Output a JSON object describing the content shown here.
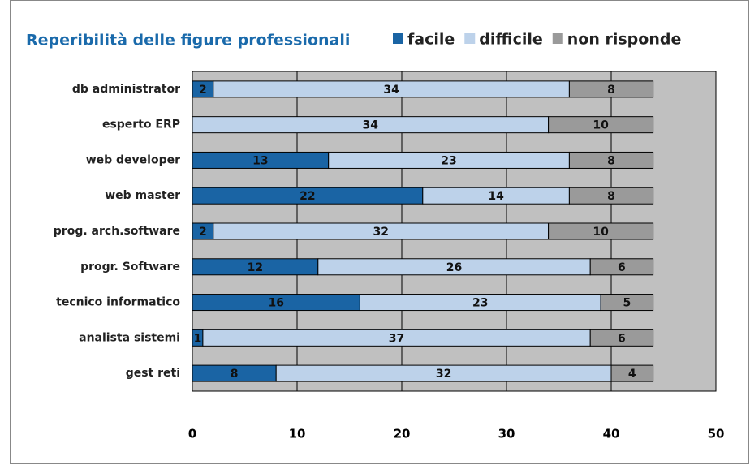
{
  "chart_data": {
    "type": "stacked-barh",
    "title": "Reperibilità delle figure professionali",
    "categories": [
      "db administrator",
      "esperto ERP",
      "web developer",
      "web master",
      "prog. arch.software",
      "progr. Software",
      "tecnico informatico",
      "analista sistemi",
      "gest reti"
    ],
    "series": [
      {
        "name": "facile",
        "color": "#1a64a4",
        "values": [
          2,
          null,
          13,
          22,
          2,
          12,
          16,
          1,
          8
        ]
      },
      {
        "name": "difficile",
        "color": "#bdd2ea",
        "values": [
          34,
          34,
          23,
          14,
          32,
          26,
          23,
          37,
          32
        ]
      },
      {
        "name": "non risponde",
        "color": "#9a9a9a",
        "values": [
          8,
          10,
          8,
          8,
          10,
          6,
          5,
          6,
          4
        ]
      }
    ],
    "xlim": [
      0,
      50
    ],
    "xticks": [
      0,
      10,
      20,
      30,
      40,
      50
    ],
    "grid": true,
    "plot_background": "#c0c0c0"
  }
}
